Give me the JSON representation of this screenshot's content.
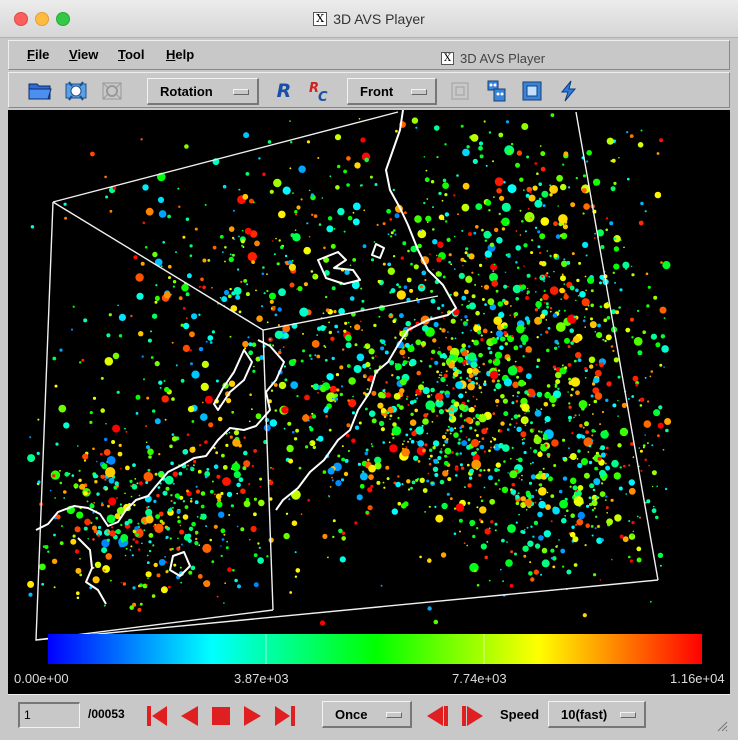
{
  "window": {
    "title": "3D AVS Player",
    "inner_title": "3D AVS Player"
  },
  "menu": {
    "file": "File",
    "view": "View",
    "tool": "Tool",
    "help": "Help"
  },
  "toolbar": {
    "mode_dropdown": "Rotation",
    "view_dropdown": "Front",
    "icons": [
      "open-folder-icon",
      "transform-icon",
      "zoom-disabled-icon",
      "reset-R-icon",
      "reset-center-RC-icon",
      "fit-disabled-icon",
      "robot-view-icon",
      "frame-box-icon",
      "lightning-icon"
    ]
  },
  "colorbar": {
    "ticks": [
      "0.00e+00",
      "3.87e+03",
      "7.74e+03",
      "1.16e+04"
    ],
    "colors": [
      "#0000ff",
      "#00ffff",
      "#00ff00",
      "#ffff00",
      "#ff0000"
    ]
  },
  "player": {
    "frame": "1",
    "total": "/00053",
    "loop_mode": "Once",
    "speed_label": "Speed",
    "speed_value": "10(fast)"
  }
}
